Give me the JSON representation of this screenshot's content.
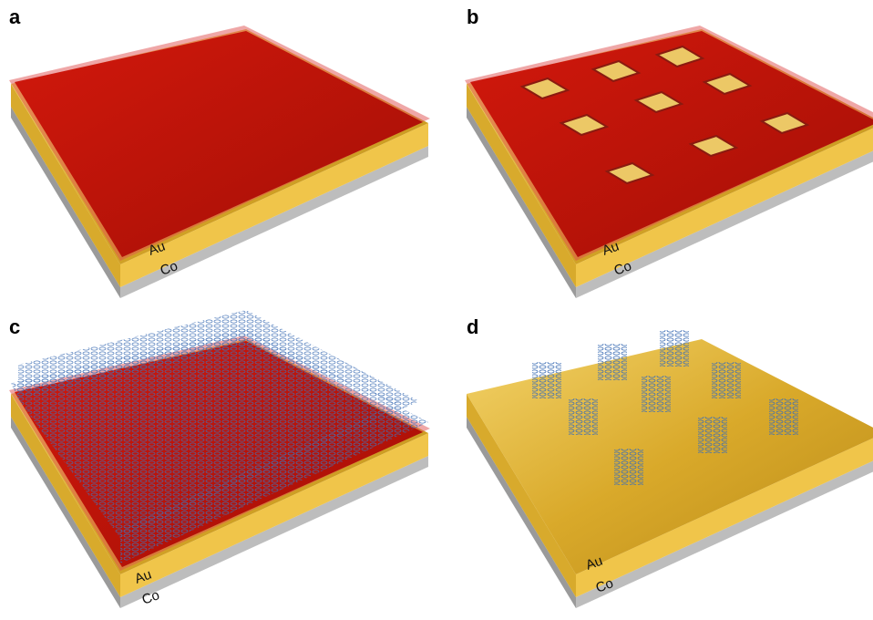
{
  "panels": [
    {
      "label": "a",
      "layers": [
        "Au",
        "Co"
      ]
    },
    {
      "label": "b",
      "layers": [
        "Au",
        "Co"
      ]
    },
    {
      "label": "c",
      "layers": [
        "Au",
        "Co"
      ]
    },
    {
      "label": "d",
      "layers": [
        "Au",
        "Co"
      ]
    }
  ]
}
